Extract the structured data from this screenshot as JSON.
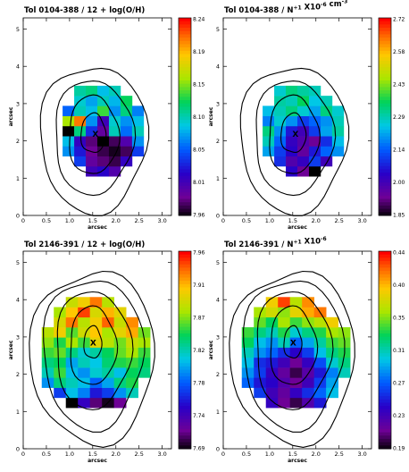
{
  "chart_data": [
    {
      "type": "heatmap",
      "title": "Tol 0104-388 / 12 + log(O/H)",
      "xlabel": "arcsec",
      "ylabel": "arcsec",
      "xlim": [
        0,
        3.2
      ],
      "ylim": [
        0,
        5.3
      ],
      "xticks": [
        "0",
        "0.5",
        "1.0",
        "1.5",
        "2.0",
        "2.5",
        "3.0"
      ],
      "yticks": [
        "0",
        "1",
        "2",
        "3",
        "4",
        "5"
      ],
      "colorbar": {
        "min": 7.96,
        "max": 8.24,
        "labels": [
          "8.24",
          "8.19",
          "8.15",
          "8.10",
          "8.05",
          "8.01",
          "7.96"
        ]
      },
      "marker": "X",
      "marker_pos": [
        1.55,
        2.2
      ],
      "grid": {
        "x0": 0.6,
        "y0": 1.05,
        "dx": 0.25,
        "dy": 0.27,
        "rows": [
          [
            null,
            null,
            null,
            0.18,
            0.22,
            0.15,
            null,
            null,
            null
          ],
          [
            null,
            null,
            0.3,
            0.12,
            0.08,
            0.05,
            0.2,
            null,
            null
          ],
          [
            null,
            0.4,
            0.25,
            0.1,
            0.05,
            0.02,
            0.06,
            0.3,
            null
          ],
          [
            null,
            0.45,
            0.2,
            0.08,
            0.0,
            0.06,
            0.15,
            0.4,
            null
          ],
          [
            null,
            0.0,
            0.55,
            0.28,
            0.12,
            0.5,
            0.36,
            0.5,
            null
          ],
          [
            null,
            0.7,
            0.9,
            0.4,
            0.18,
            0.48,
            0.4,
            0.45,
            null
          ],
          [
            null,
            0.35,
            0.5,
            0.45,
            0.62,
            0.4,
            0.55,
            0.38,
            null
          ],
          [
            null,
            null,
            0.48,
            0.42,
            0.5,
            0.44,
            0.58,
            null,
            null
          ],
          [
            null,
            null,
            0.52,
            0.55,
            0.45,
            0.5,
            null,
            null,
            null
          ]
        ]
      }
    },
    {
      "type": "heatmap",
      "title": "Tol 0104-388 / N+1 X10-6 cm-3",
      "xlabel": "arcsec",
      "ylabel": "arcsec",
      "xlim": [
        0,
        3.2
      ],
      "ylim": [
        0,
        5.3
      ],
      "xticks": [
        "0",
        "0.5",
        "1.0",
        "1.5",
        "2.0",
        "2.5",
        "3.0"
      ],
      "yticks": [
        "0",
        "1",
        "2",
        "3",
        "4",
        "5"
      ],
      "colorbar": {
        "min": 1.85,
        "max": 2.72,
        "labels": [
          "2.72",
          "2.58",
          "2.43",
          "2.29",
          "2.14",
          "2.00",
          "1.85"
        ]
      },
      "marker": "X",
      "marker_pos": [
        1.55,
        2.2
      ],
      "grid": {
        "x0": 0.6,
        "y0": 1.05,
        "dx": 0.25,
        "dy": 0.27,
        "rows": [
          [
            null,
            null,
            null,
            0.22,
            0.1,
            0.0,
            null,
            null,
            null
          ],
          [
            null,
            null,
            0.28,
            0.15,
            0.2,
            0.3,
            0.18,
            null,
            null
          ],
          [
            null,
            0.42,
            0.3,
            0.22,
            0.12,
            0.25,
            0.35,
            0.4,
            null
          ],
          [
            null,
            0.5,
            0.35,
            0.2,
            0.15,
            0.1,
            0.28,
            0.45,
            null
          ],
          [
            null,
            0.55,
            0.4,
            0.25,
            0.18,
            0.3,
            0.42,
            0.52,
            null
          ],
          [
            null,
            0.38,
            0.48,
            0.4,
            0.3,
            0.35,
            0.4,
            0.5,
            null
          ],
          [
            null,
            0.45,
            0.5,
            0.55,
            0.48,
            0.42,
            0.55,
            0.48,
            null
          ],
          [
            null,
            null,
            0.52,
            0.5,
            0.58,
            0.46,
            0.5,
            null,
            null
          ],
          [
            null,
            null,
            0.48,
            0.55,
            0.52,
            0.5,
            null,
            null,
            null
          ]
        ]
      }
    },
    {
      "type": "heatmap",
      "title": "Tol 2146-391 / 12 + log(O/H)",
      "xlabel": "arcsec",
      "ylabel": "arcsec",
      "xlim": [
        0,
        3.2
      ],
      "ylim": [
        0,
        5.3
      ],
      "xticks": [
        "0",
        "0.5",
        "1.0",
        "1.5",
        "2.0",
        "2.5",
        "3.0"
      ],
      "yticks": [
        "0",
        "1",
        "2",
        "3",
        "4",
        "5"
      ],
      "colorbar": {
        "min": 7.69,
        "max": 7.96,
        "labels": [
          "7.96",
          "7.91",
          "7.87",
          "7.82",
          "7.78",
          "7.74",
          "7.69"
        ]
      },
      "marker": "X",
      "marker_pos": [
        1.5,
        2.85
      ],
      "grid": {
        "x0": 0.4,
        "y0": 1.1,
        "dx": 0.26,
        "dy": 0.27,
        "rows": [
          [
            null,
            null,
            0.0,
            0.2,
            0.08,
            0.02,
            0.1,
            null,
            null
          ],
          [
            null,
            0.3,
            0.45,
            0.38,
            0.25,
            0.3,
            0.4,
            0.5,
            null
          ],
          [
            0.4,
            0.55,
            0.5,
            0.45,
            0.35,
            0.42,
            0.55,
            0.6,
            null
          ],
          [
            0.5,
            0.62,
            0.45,
            0.4,
            0.48,
            0.52,
            0.45,
            0.58,
            0.55
          ],
          [
            0.55,
            0.58,
            0.42,
            0.5,
            0.46,
            0.56,
            0.6,
            0.62,
            0.58
          ],
          [
            0.62,
            0.65,
            0.55,
            0.48,
            0.52,
            0.58,
            0.65,
            0.7,
            0.62
          ],
          [
            0.68,
            0.6,
            0.7,
            0.62,
            0.78,
            0.72,
            0.66,
            0.74,
            0.7
          ],
          [
            0.72,
            0.8,
            0.64,
            0.75,
            0.82,
            0.7,
            0.78,
            0.85,
            0.66
          ],
          [
            null,
            0.76,
            0.9,
            0.72,
            0.8,
            0.92,
            0.74,
            0.88,
            null
          ],
          [
            null,
            0.7,
            0.82,
            0.95,
            0.76,
            0.84,
            0.78,
            null,
            null
          ],
          [
            null,
            null,
            0.74,
            0.8,
            0.9,
            0.72,
            null,
            null,
            null
          ]
        ]
      }
    },
    {
      "type": "heatmap",
      "title": "Tol 2146-391 / N+1 X10-6",
      "xlabel": "arcsec",
      "ylabel": "arcsec",
      "xlim": [
        0,
        3.2
      ],
      "ylim": [
        0,
        5.3
      ],
      "xticks": [
        "0",
        "0.5",
        "1.0",
        "1.5",
        "2.0",
        "2.5",
        "3.0"
      ],
      "yticks": [
        "0",
        "1",
        "2",
        "3",
        "4",
        "5"
      ],
      "colorbar": {
        "min": 0.19,
        "max": 0.44,
        "labels": [
          "0.44",
          "0.40",
          "0.35",
          "0.31",
          "0.27",
          "0.23",
          "0.19"
        ]
      },
      "marker": "X",
      "marker_pos": [
        1.5,
        2.85
      ],
      "grid": {
        "x0": 0.4,
        "y0": 1.1,
        "dx": 0.26,
        "dy": 0.27,
        "rows": [
          [
            null,
            null,
            0.2,
            0.1,
            0.05,
            0.15,
            0.25,
            null,
            null
          ],
          [
            null,
            0.3,
            0.18,
            0.12,
            0.2,
            0.28,
            0.35,
            0.45,
            null
          ],
          [
            0.35,
            0.25,
            0.22,
            0.15,
            0.1,
            0.18,
            0.3,
            0.42,
            null
          ],
          [
            0.4,
            0.3,
            0.2,
            0.12,
            0.05,
            0.14,
            0.25,
            0.38,
            0.5
          ],
          [
            0.45,
            0.28,
            0.25,
            0.18,
            0.1,
            0.2,
            0.32,
            0.48,
            0.55
          ],
          [
            0.5,
            0.4,
            0.35,
            0.28,
            0.22,
            0.3,
            0.45,
            0.55,
            0.6
          ],
          [
            0.58,
            0.45,
            0.4,
            0.5,
            0.35,
            0.42,
            0.52,
            0.62,
            0.65
          ],
          [
            0.62,
            0.55,
            0.5,
            0.6,
            0.48,
            0.55,
            0.6,
            0.7,
            0.68
          ],
          [
            null,
            0.65,
            0.58,
            0.7,
            0.62,
            0.68,
            0.72,
            0.8,
            null
          ],
          [
            null,
            0.7,
            0.75,
            0.68,
            0.78,
            0.85,
            0.9,
            null,
            null
          ],
          [
            null,
            null,
            0.8,
            0.95,
            0.72,
            0.88,
            null,
            null,
            null
          ]
        ]
      }
    }
  ]
}
